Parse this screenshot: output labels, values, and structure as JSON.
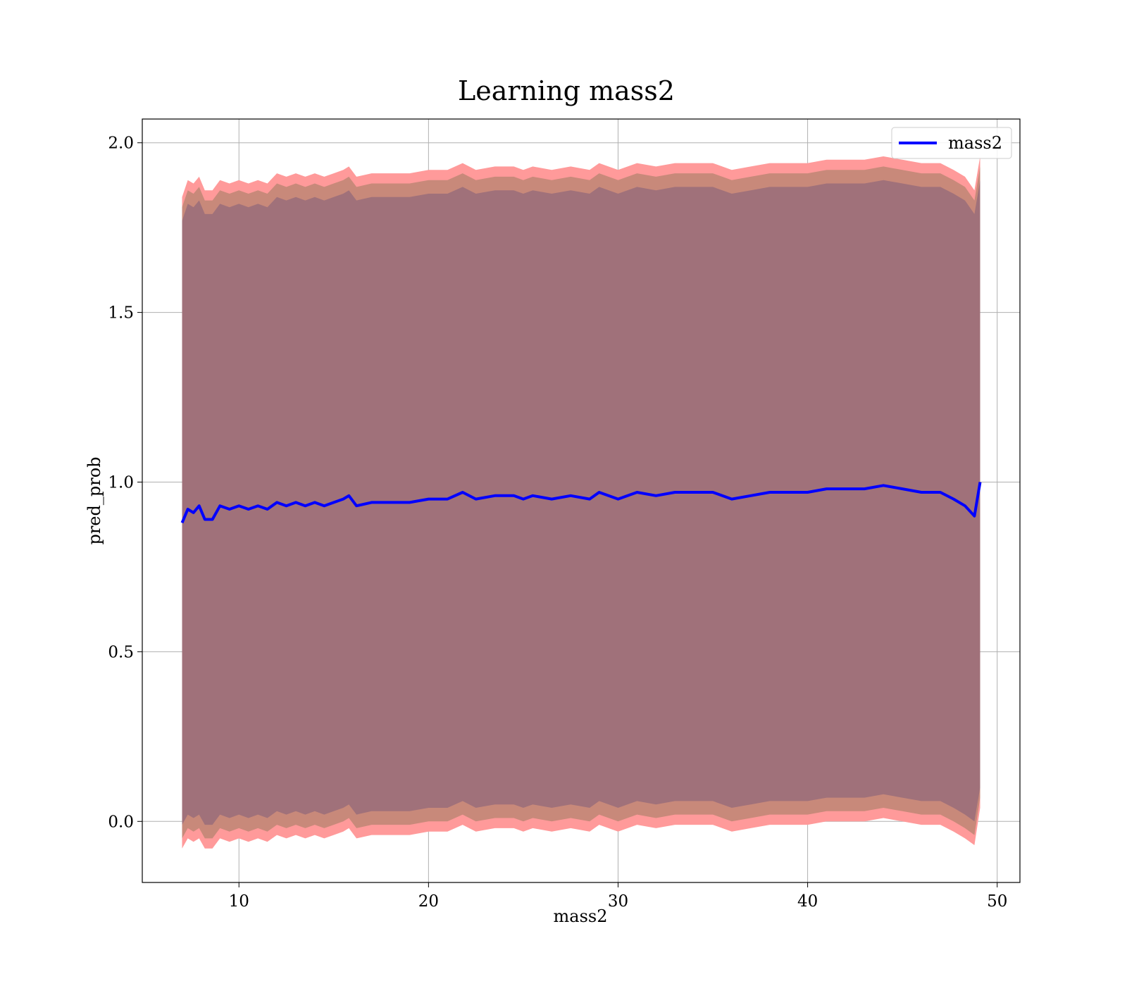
{
  "chart_data": {
    "type": "line",
    "title": "Learning mass2",
    "xlabel": "mass2",
    "ylabel": "pred_prob",
    "xlim": [
      4.9,
      51.2
    ],
    "ylim": [
      -0.18,
      2.07
    ],
    "xticks": [
      10,
      20,
      30,
      40,
      50
    ],
    "yticks": [
      0.0,
      0.5,
      1.0,
      1.5,
      2.0
    ],
    "xtick_labels": [
      "10",
      "20",
      "30",
      "40",
      "50"
    ],
    "ytick_labels": [
      "0.0",
      "0.5",
      "1.0",
      "1.5",
      "2.0"
    ],
    "grid": true,
    "legend": {
      "position": "top-right",
      "entries": [
        "mass2"
      ]
    },
    "colors": {
      "line": "#0000ff",
      "band_outer": "#ff9a9a",
      "band_middle": "#c8897a",
      "band_inner": "#a0717a"
    },
    "series": [
      {
        "name": "mass2",
        "x": [
          7.0,
          7.3,
          7.6,
          7.9,
          8.2,
          8.6,
          9.0,
          9.5,
          10.0,
          10.5,
          11.0,
          11.5,
          12.0,
          12.5,
          13.0,
          13.5,
          14.0,
          14.5,
          15.0,
          15.5,
          15.8,
          16.2,
          17.0,
          18.0,
          19.0,
          20.0,
          21.0,
          21.8,
          22.5,
          23.5,
          24.5,
          25.0,
          25.5,
          26.5,
          27.5,
          28.5,
          29.0,
          30.0,
          31.0,
          32.0,
          33.0,
          34.0,
          35.0,
          36.0,
          37.0,
          38.0,
          39.0,
          40.0,
          41.0,
          42.0,
          43.0,
          44.0,
          45.0,
          46.0,
          47.0,
          47.7,
          48.3,
          48.8,
          49.1
        ],
        "y": [
          0.88,
          0.92,
          0.91,
          0.93,
          0.89,
          0.89,
          0.93,
          0.92,
          0.93,
          0.92,
          0.93,
          0.92,
          0.94,
          0.93,
          0.94,
          0.93,
          0.94,
          0.93,
          0.94,
          0.95,
          0.96,
          0.93,
          0.94,
          0.94,
          0.94,
          0.95,
          0.95,
          0.97,
          0.95,
          0.96,
          0.96,
          0.95,
          0.96,
          0.95,
          0.96,
          0.95,
          0.97,
          0.95,
          0.97,
          0.96,
          0.97,
          0.97,
          0.97,
          0.95,
          0.96,
          0.97,
          0.97,
          0.97,
          0.98,
          0.98,
          0.98,
          0.99,
          0.98,
          0.97,
          0.97,
          0.95,
          0.93,
          0.9,
          1.0
        ]
      }
    ],
    "bands": [
      {
        "x": [
          7.0,
          7.3,
          7.6,
          7.9,
          8.2,
          8.6,
          9.0,
          9.5,
          10.0,
          10.5,
          11.0,
          11.5,
          12.0,
          12.5,
          13.0,
          13.5,
          14.0,
          14.5,
          15.0,
          15.5,
          15.8,
          16.2,
          17.0,
          18.0,
          19.0,
          20.0,
          21.0,
          21.8,
          22.5,
          23.5,
          24.5,
          25.0,
          25.5,
          26.5,
          27.5,
          28.5,
          29.0,
          30.0,
          31.0,
          32.0,
          33.0,
          34.0,
          35.0,
          36.0,
          37.0,
          38.0,
          39.0,
          40.0,
          41.0,
          42.0,
          43.0,
          44.0,
          45.0,
          46.0,
          47.0,
          47.7,
          48.3,
          48.8,
          49.1
        ],
        "lower": [
          -0.08,
          -0.05,
          -0.06,
          -0.05,
          -0.08,
          -0.08,
          -0.05,
          -0.06,
          -0.05,
          -0.06,
          -0.05,
          -0.06,
          -0.04,
          -0.05,
          -0.04,
          -0.05,
          -0.04,
          -0.05,
          -0.04,
          -0.03,
          -0.02,
          -0.05,
          -0.04,
          -0.04,
          -0.04,
          -0.03,
          -0.03,
          -0.01,
          -0.03,
          -0.02,
          -0.02,
          -0.03,
          -0.02,
          -0.03,
          -0.02,
          -0.03,
          -0.01,
          -0.03,
          -0.01,
          -0.02,
          -0.01,
          -0.01,
          -0.01,
          -0.03,
          -0.02,
          -0.01,
          -0.01,
          -0.01,
          0.0,
          0.0,
          0.0,
          0.01,
          0.0,
          -0.01,
          -0.01,
          -0.03,
          -0.05,
          -0.07,
          0.04
        ],
        "upper": [
          1.84,
          1.89,
          1.88,
          1.9,
          1.86,
          1.86,
          1.89,
          1.88,
          1.89,
          1.88,
          1.89,
          1.88,
          1.91,
          1.9,
          1.91,
          1.9,
          1.91,
          1.9,
          1.91,
          1.92,
          1.93,
          1.9,
          1.91,
          1.91,
          1.91,
          1.92,
          1.92,
          1.94,
          1.92,
          1.93,
          1.93,
          1.92,
          1.93,
          1.92,
          1.93,
          1.92,
          1.94,
          1.92,
          1.94,
          1.93,
          1.94,
          1.94,
          1.94,
          1.92,
          1.93,
          1.94,
          1.94,
          1.94,
          1.95,
          1.95,
          1.95,
          1.96,
          1.95,
          1.94,
          1.94,
          1.92,
          1.9,
          1.86,
          1.96
        ]
      },
      {
        "x": [
          7.0,
          7.3,
          7.6,
          7.9,
          8.2,
          8.6,
          9.0,
          9.5,
          10.0,
          10.5,
          11.0,
          11.5,
          12.0,
          12.5,
          13.0,
          13.5,
          14.0,
          14.5,
          15.0,
          15.5,
          15.8,
          16.2,
          17.0,
          18.0,
          19.0,
          20.0,
          21.0,
          21.8,
          22.5,
          23.5,
          24.5,
          25.0,
          25.5,
          26.5,
          27.5,
          28.5,
          29.0,
          30.0,
          31.0,
          32.0,
          33.0,
          34.0,
          35.0,
          36.0,
          37.0,
          38.0,
          39.0,
          40.0,
          41.0,
          42.0,
          43.0,
          44.0,
          45.0,
          46.0,
          47.0,
          47.7,
          48.3,
          48.8,
          49.1
        ],
        "lower": [
          -0.05,
          -0.02,
          -0.03,
          -0.02,
          -0.05,
          -0.05,
          -0.02,
          -0.03,
          -0.02,
          -0.03,
          -0.02,
          -0.03,
          -0.01,
          -0.02,
          -0.01,
          -0.02,
          -0.01,
          -0.02,
          -0.01,
          0.0,
          0.01,
          -0.02,
          -0.01,
          -0.01,
          -0.01,
          0.0,
          0.0,
          0.02,
          0.0,
          0.01,
          0.01,
          0.0,
          0.01,
          0.0,
          0.01,
          0.0,
          0.02,
          0.0,
          0.02,
          0.01,
          0.02,
          0.02,
          0.02,
          0.0,
          0.01,
          0.02,
          0.02,
          0.02,
          0.03,
          0.03,
          0.03,
          0.04,
          0.03,
          0.02,
          0.02,
          0.0,
          -0.02,
          -0.04,
          0.07
        ],
        "upper": [
          1.81,
          1.86,
          1.85,
          1.87,
          1.83,
          1.83,
          1.86,
          1.85,
          1.86,
          1.85,
          1.86,
          1.85,
          1.88,
          1.87,
          1.88,
          1.87,
          1.88,
          1.87,
          1.88,
          1.89,
          1.9,
          1.87,
          1.88,
          1.88,
          1.88,
          1.89,
          1.89,
          1.91,
          1.89,
          1.9,
          1.9,
          1.89,
          1.9,
          1.89,
          1.9,
          1.89,
          1.91,
          1.89,
          1.91,
          1.9,
          1.91,
          1.91,
          1.91,
          1.89,
          1.9,
          1.91,
          1.91,
          1.91,
          1.92,
          1.92,
          1.92,
          1.93,
          1.92,
          1.91,
          1.91,
          1.89,
          1.87,
          1.83,
          1.93
        ]
      },
      {
        "x": [
          7.0,
          7.3,
          7.6,
          7.9,
          8.2,
          8.6,
          9.0,
          9.5,
          10.0,
          10.5,
          11.0,
          11.5,
          12.0,
          12.5,
          13.0,
          13.5,
          14.0,
          14.5,
          15.0,
          15.5,
          15.8,
          16.2,
          17.0,
          18.0,
          19.0,
          20.0,
          21.0,
          21.8,
          22.5,
          23.5,
          24.5,
          25.0,
          25.5,
          26.5,
          27.5,
          28.5,
          29.0,
          30.0,
          31.0,
          32.0,
          33.0,
          34.0,
          35.0,
          36.0,
          37.0,
          38.0,
          39.0,
          40.0,
          41.0,
          42.0,
          43.0,
          44.0,
          45.0,
          46.0,
          47.0,
          47.7,
          48.3,
          48.8,
          49.1
        ],
        "lower": [
          -0.01,
          0.02,
          0.01,
          0.02,
          -0.01,
          -0.01,
          0.02,
          0.01,
          0.02,
          0.01,
          0.02,
          0.01,
          0.03,
          0.02,
          0.03,
          0.02,
          0.03,
          0.02,
          0.03,
          0.04,
          0.05,
          0.02,
          0.03,
          0.03,
          0.03,
          0.04,
          0.04,
          0.06,
          0.04,
          0.05,
          0.05,
          0.04,
          0.05,
          0.04,
          0.05,
          0.04,
          0.06,
          0.04,
          0.06,
          0.05,
          0.06,
          0.06,
          0.06,
          0.04,
          0.05,
          0.06,
          0.06,
          0.06,
          0.07,
          0.07,
          0.07,
          0.08,
          0.07,
          0.06,
          0.06,
          0.04,
          0.02,
          0.0,
          0.1
        ],
        "upper": [
          1.77,
          1.82,
          1.81,
          1.83,
          1.79,
          1.79,
          1.82,
          1.81,
          1.82,
          1.81,
          1.82,
          1.81,
          1.84,
          1.83,
          1.84,
          1.83,
          1.84,
          1.83,
          1.84,
          1.85,
          1.86,
          1.83,
          1.84,
          1.84,
          1.84,
          1.85,
          1.85,
          1.87,
          1.85,
          1.86,
          1.86,
          1.85,
          1.86,
          1.85,
          1.86,
          1.85,
          1.87,
          1.85,
          1.87,
          1.86,
          1.87,
          1.87,
          1.87,
          1.85,
          1.86,
          1.87,
          1.87,
          1.87,
          1.88,
          1.88,
          1.88,
          1.89,
          1.88,
          1.87,
          1.87,
          1.85,
          1.83,
          1.79,
          1.89
        ]
      }
    ]
  }
}
